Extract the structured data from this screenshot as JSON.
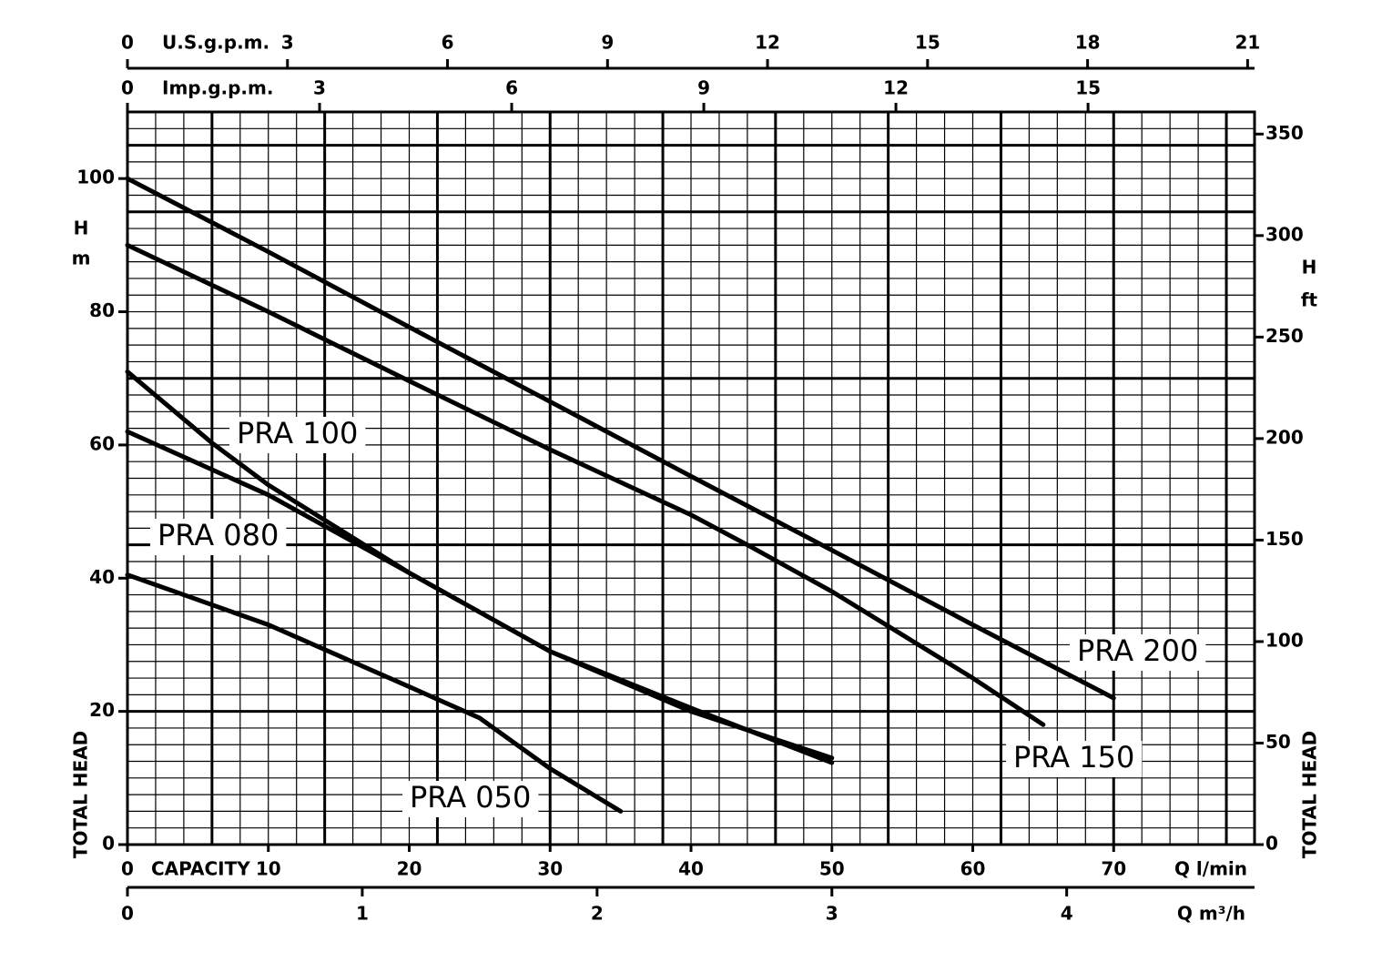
{
  "chart_data": {
    "type": "line",
    "xlabel": "Q l/min",
    "xlabel_prefix": "CAPACITY",
    "ylabel": "TOTAL HEAD",
    "ylabel_symbol": "H",
    "ylabel_unit": "m",
    "y2label": "TOTAL HEAD",
    "y2label_symbol": "H",
    "y2label_unit": "ft",
    "xlim": [
      0,
      80
    ],
    "xticks": [
      0,
      10,
      20,
      30,
      40,
      50,
      60,
      70
    ],
    "ylim": [
      0,
      110
    ],
    "yticks": [
      0,
      20,
      40,
      60,
      80,
      100
    ],
    "y2lim": [
      0,
      360.9
    ],
    "y2ticks": [
      0,
      50,
      100,
      150,
      200,
      250,
      300,
      350
    ],
    "grid": true,
    "secondary_x_axes": [
      {
        "label": "U.S.g.p.m.",
        "lim": [
          0,
          21.13
        ],
        "ticks": [
          0,
          3,
          6,
          9,
          12,
          15,
          18,
          21
        ]
      },
      {
        "label": "Imp.g.p.m.",
        "lim": [
          0,
          17.6
        ],
        "ticks": [
          0,
          3,
          6,
          9,
          12,
          15
        ]
      },
      {
        "label": "Q m³/h",
        "lim": [
          0,
          4.8
        ],
        "ticks": [
          0,
          1,
          2,
          3,
          4
        ]
      }
    ],
    "series": [
      {
        "name": "PRA 200",
        "color": "#000000",
        "x": [
          0,
          10,
          20,
          30,
          40,
          50,
          60,
          70
        ],
        "values": [
          100,
          89,
          77.7,
          66.5,
          55.3,
          44.2,
          33,
          22
        ]
      },
      {
        "name": "PRA 150",
        "color": "#000000",
        "x": [
          0,
          10,
          20,
          30,
          40,
          44,
          50,
          60,
          65
        ],
        "values": [
          90,
          80,
          69.6,
          59.3,
          49.5,
          45,
          38,
          25,
          18
        ]
      },
      {
        "name": "PRA 100",
        "color": "#000000",
        "x": [
          0,
          6,
          10,
          20,
          30,
          40,
          50
        ],
        "values": [
          71,
          60.3,
          54,
          40.8,
          29,
          20.5,
          12.3
        ]
      },
      {
        "name": "PRA 080",
        "color": "#000000",
        "x": [
          0,
          10,
          20,
          30,
          40,
          50
        ],
        "values": [
          62,
          52.5,
          40.8,
          29,
          20,
          13
        ]
      },
      {
        "name": "PRA 050",
        "color": "#000000",
        "x": [
          0,
          10,
          20,
          25,
          30,
          35
        ],
        "values": [
          40.5,
          33,
          23.7,
          19,
          11.4,
          5
        ]
      }
    ]
  }
}
